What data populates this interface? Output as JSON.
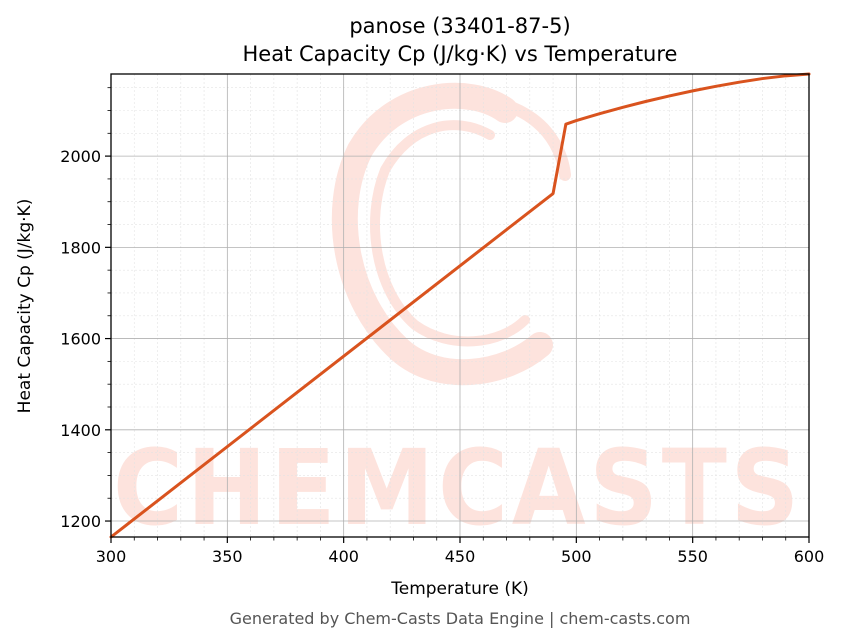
{
  "chart_data": {
    "type": "line",
    "title": "panose (33401-87-5)",
    "subtitle": "Heat Capacity Cp (J/kg·K) vs Temperature",
    "xlabel": "Temperature (K)",
    "ylabel": "Heat Capacity Cp (J/kg·K)",
    "xlim": [
      300,
      600
    ],
    "ylim": [
      1165,
      2180
    ],
    "xticks": [
      300,
      350,
      400,
      450,
      500,
      550,
      600
    ],
    "yticks": [
      1200,
      1400,
      1600,
      1800,
      2000
    ],
    "grid": true,
    "minor_grid": true,
    "legend": false,
    "series": [
      {
        "color": "#d9531e",
        "x": [
          300,
          490,
          495.5,
          500,
          510,
          520,
          530,
          540,
          550,
          560,
          570,
          580,
          590,
          600
        ],
        "y": [
          1165,
          1918,
          2070,
          2078,
          2093,
          2107,
          2120,
          2132,
          2143,
          2153,
          2162,
          2170,
          2176,
          2180
        ]
      }
    ]
  },
  "watermark": {
    "text": "CHEMCASTS",
    "color": "#fde3dd"
  },
  "footer": "Generated by Chem-Casts Data Engine | chem-casts.com"
}
